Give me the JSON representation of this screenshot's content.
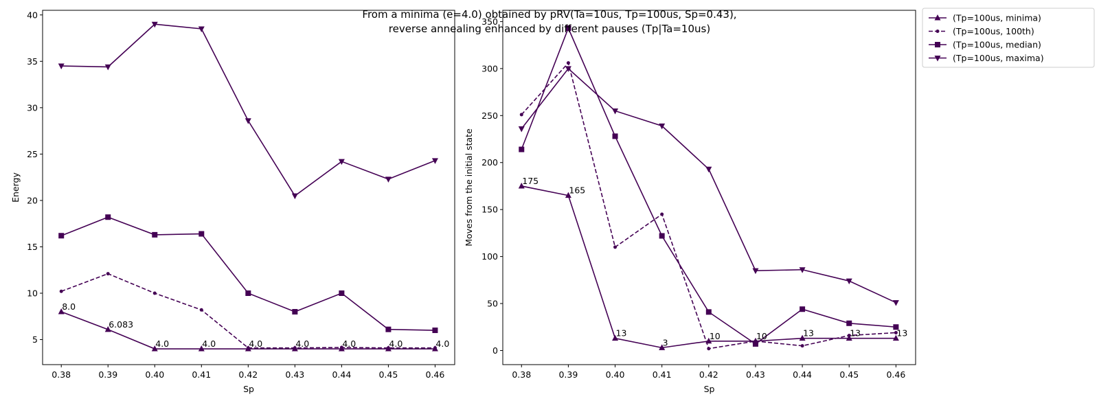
{
  "chart_data": {
    "type": "line",
    "title_lines": [
      "From a minima (e=4.0) obtained by pRV(Ta=10us, Tp=100us, Sp=0.43),",
      "reverse annealing enhanced by different pauses (Tp|Ta=10us)"
    ],
    "color": "#440154",
    "legend": {
      "placement": "outside-top-right",
      "entries": [
        {
          "label": "(Tp=100us, minima)",
          "marker": "triangle-up",
          "dashed": false
        },
        {
          "label": "(Tp=100us, 100th)",
          "marker": "circle",
          "dashed": true
        },
        {
          "label": "(Tp=100us, median)",
          "marker": "square",
          "dashed": false
        },
        {
          "label": "(Tp=100us, maxima)",
          "marker": "triangle-down",
          "dashed": false
        }
      ]
    },
    "panels": [
      {
        "xlabel": "Sp",
        "ylabel": "Energy",
        "x": [
          0.38,
          0.39,
          0.4,
          0.41,
          0.42,
          0.43,
          0.44,
          0.45,
          0.46
        ],
        "x_tick_labels": [
          "0.38",
          "0.39",
          "0.40",
          "0.41",
          "0.42",
          "0.43",
          "0.44",
          "0.45",
          "0.46"
        ],
        "xlim": [
          0.376,
          0.4642
        ],
        "ylim": [
          2.3,
          40.5
        ],
        "y_ticks": [
          5,
          10,
          15,
          20,
          25,
          30,
          35,
          40
        ],
        "y_tick_labels": [
          "5",
          "10",
          "15",
          "20",
          "25",
          "30",
          "35",
          "40"
        ],
        "series": [
          {
            "name": "(Tp=100us, minima)",
            "marker": "triangle-up",
            "dashed": false,
            "values": [
              8.0,
              6.083,
              4.0,
              4.0,
              4.0,
              4.0,
              4.0,
              4.0,
              4.0
            ],
            "labels": [
              "8.0",
              "6.083",
              "4.0",
              "4.0",
              "4.0",
              "4.0",
              "4.0",
              "4.0",
              "4.0"
            ]
          },
          {
            "name": "(Tp=100us, 100th)",
            "marker": "circle",
            "dashed": true,
            "values": [
              10.2,
              12.1,
              10.0,
              8.2,
              4.1,
              4.1,
              4.15,
              4.1,
              4.1
            ]
          },
          {
            "name": "(Tp=100us, median)",
            "marker": "square",
            "dashed": false,
            "values": [
              16.2,
              18.2,
              16.3,
              16.4,
              10.0,
              8.0,
              10.0,
              6.1,
              6.0
            ]
          },
          {
            "name": "(Tp=100us, maxima)",
            "marker": "triangle-down",
            "dashed": false,
            "values": [
              34.5,
              34.4,
              39.0,
              38.5,
              28.6,
              20.5,
              24.2,
              22.3,
              24.3
            ]
          }
        ]
      },
      {
        "xlabel": "Sp",
        "ylabel": "Moves from the initial state",
        "x": [
          0.38,
          0.39,
          0.4,
          0.41,
          0.42,
          0.43,
          0.44,
          0.45,
          0.46
        ],
        "x_tick_labels": [
          "0.38",
          "0.39",
          "0.40",
          "0.41",
          "0.42",
          "0.43",
          "0.44",
          "0.45",
          "0.46"
        ],
        "xlim": [
          0.376,
          0.4642
        ],
        "ylim": [
          -15,
          362
        ],
        "y_ticks": [
          0,
          50,
          100,
          150,
          200,
          250,
          300,
          350
        ],
        "y_tick_labels": [
          "0",
          "50",
          "100",
          "150",
          "200",
          "250",
          "300",
          "350"
        ],
        "series": [
          {
            "name": "(Tp=100us, minima)",
            "marker": "triangle-up",
            "dashed": false,
            "values": [
              175,
              165,
              13,
              3,
              10,
              10,
              13,
              13,
              13
            ],
            "labels": [
              "175",
              "165",
              "13",
              "3",
              "10",
              "10",
              "13",
              "13",
              "13"
            ]
          },
          {
            "name": "(Tp=100us, 100th)",
            "marker": "circle",
            "dashed": true,
            "values": [
              251,
              306,
              110,
              145,
              2,
              10,
              5,
              16,
              19
            ]
          },
          {
            "name": "(Tp=100us, median)",
            "marker": "square",
            "dashed": false,
            "values": [
              214,
              343,
              228,
              122,
              41,
              7,
              44,
              29,
              25
            ]
          },
          {
            "name": "(Tp=100us, maxima)",
            "marker": "triangle-down",
            "dashed": false,
            "values": [
              236,
              300,
              255,
              239,
              193,
              85,
              86,
              74,
              51
            ]
          }
        ]
      }
    ]
  }
}
